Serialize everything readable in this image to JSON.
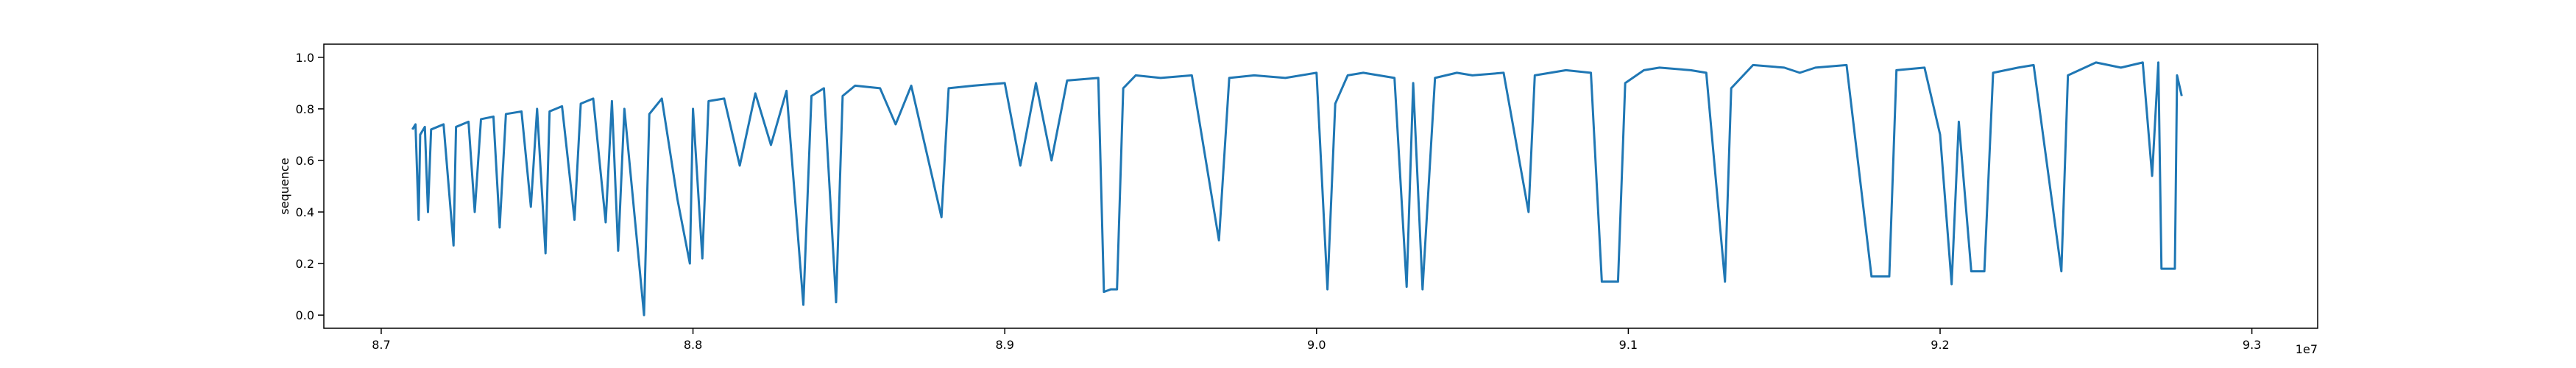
{
  "chart_data": {
    "type": "line",
    "ylabel": "sequence",
    "x_offset_label": "1e7",
    "x": [
      87100000,
      87110000,
      87120000,
      87125000,
      87140000,
      87150000,
      87160000,
      87200000,
      87232000,
      87240000,
      87280000,
      87300000,
      87320000,
      87360000,
      87380000,
      87400000,
      87450000,
      87480000,
      87500000,
      87527000,
      87540000,
      87580000,
      87620000,
      87640000,
      87680000,
      87720000,
      87740000,
      87760000,
      87780000,
      87843000,
      87860000,
      87900000,
      87950000,
      87990000,
      88000000,
      88030000,
      88050000,
      88100000,
      88150000,
      88200000,
      88250000,
      88300000,
      88354000,
      88380000,
      88420000,
      88459000,
      88480000,
      88520000,
      88600000,
      88650000,
      88700000,
      88797000,
      88820000,
      88900000,
      89000000,
      89050000,
      89100000,
      89150000,
      89200000,
      89300000,
      89318000,
      89340000,
      89360000,
      89380000,
      89420000,
      89500000,
      89600000,
      89687000,
      89720000,
      89800000,
      89900000,
      90000000,
      90035000,
      90060000,
      90100000,
      90150000,
      90200000,
      90250000,
      90289000,
      90310000,
      90340000,
      90380000,
      90450000,
      90500000,
      90600000,
      90680000,
      90700000,
      90800000,
      90880000,
      90915000,
      90967000,
      90990000,
      91050000,
      91100000,
      91200000,
      91250000,
      91310000,
      91330000,
      91400000,
      91500000,
      91550000,
      91600000,
      91700000,
      91780000,
      91837000,
      91860000,
      91950000,
      92000000,
      92037000,
      92060000,
      92100000,
      92142000,
      92170000,
      92250000,
      92300000,
      92389000,
      92410000,
      92500000,
      92580000,
      92650000,
      92680000,
      92700000,
      92710000,
      92753000,
      92760000,
      92775000
    ],
    "series": [
      {
        "color": "#1f77b4",
        "values": [
          0.72,
          0.74,
          0.37,
          0.7,
          0.73,
          0.4,
          0.72,
          0.74,
          0.27,
          0.73,
          0.75,
          0.4,
          0.76,
          0.77,
          0.34,
          0.78,
          0.79,
          0.42,
          0.8,
          0.24,
          0.79,
          0.81,
          0.37,
          0.82,
          0.84,
          0.36,
          0.83,
          0.25,
          0.8,
          0.0,
          0.78,
          0.84,
          0.45,
          0.2,
          0.8,
          0.22,
          0.83,
          0.84,
          0.58,
          0.86,
          0.66,
          0.87,
          0.04,
          0.85,
          0.88,
          0.05,
          0.85,
          0.89,
          0.88,
          0.74,
          0.89,
          0.38,
          0.88,
          0.89,
          0.9,
          0.58,
          0.9,
          0.6,
          0.91,
          0.92,
          0.09,
          0.1,
          0.1,
          0.88,
          0.93,
          0.92,
          0.93,
          0.29,
          0.92,
          0.93,
          0.92,
          0.94,
          0.1,
          0.82,
          0.93,
          0.94,
          0.93,
          0.92,
          0.11,
          0.9,
          0.1,
          0.92,
          0.94,
          0.93,
          0.94,
          0.4,
          0.93,
          0.95,
          0.94,
          0.13,
          0.13,
          0.9,
          0.95,
          0.96,
          0.95,
          0.94,
          0.13,
          0.88,
          0.97,
          0.96,
          0.94,
          0.96,
          0.97,
          0.15,
          0.15,
          0.95,
          0.96,
          0.7,
          0.12,
          0.75,
          0.17,
          0.17,
          0.94,
          0.96,
          0.97,
          0.17,
          0.93,
          0.98,
          0.96,
          0.98,
          0.54,
          0.98,
          0.18,
          0.18,
          0.93,
          0.85
        ]
      }
    ],
    "xlim": [
      86816000,
      93211000
    ],
    "xticks": [
      {
        "value": 87000000,
        "label": "8.7"
      },
      {
        "value": 88000000,
        "label": "8.8"
      },
      {
        "value": 89000000,
        "label": "8.9"
      },
      {
        "value": 90000000,
        "label": "9.0"
      },
      {
        "value": 91000000,
        "label": "9.1"
      },
      {
        "value": 92000000,
        "label": "9.2"
      },
      {
        "value": 93000000,
        "label": "9.3"
      }
    ],
    "ylim": [
      -0.051,
      1.051
    ],
    "yticks": [
      {
        "value": 0,
        "label": "0.0"
      },
      0.2,
      0.4,
      0.6,
      0.8,
      {
        "value": 1,
        "label": "1.0"
      }
    ]
  }
}
